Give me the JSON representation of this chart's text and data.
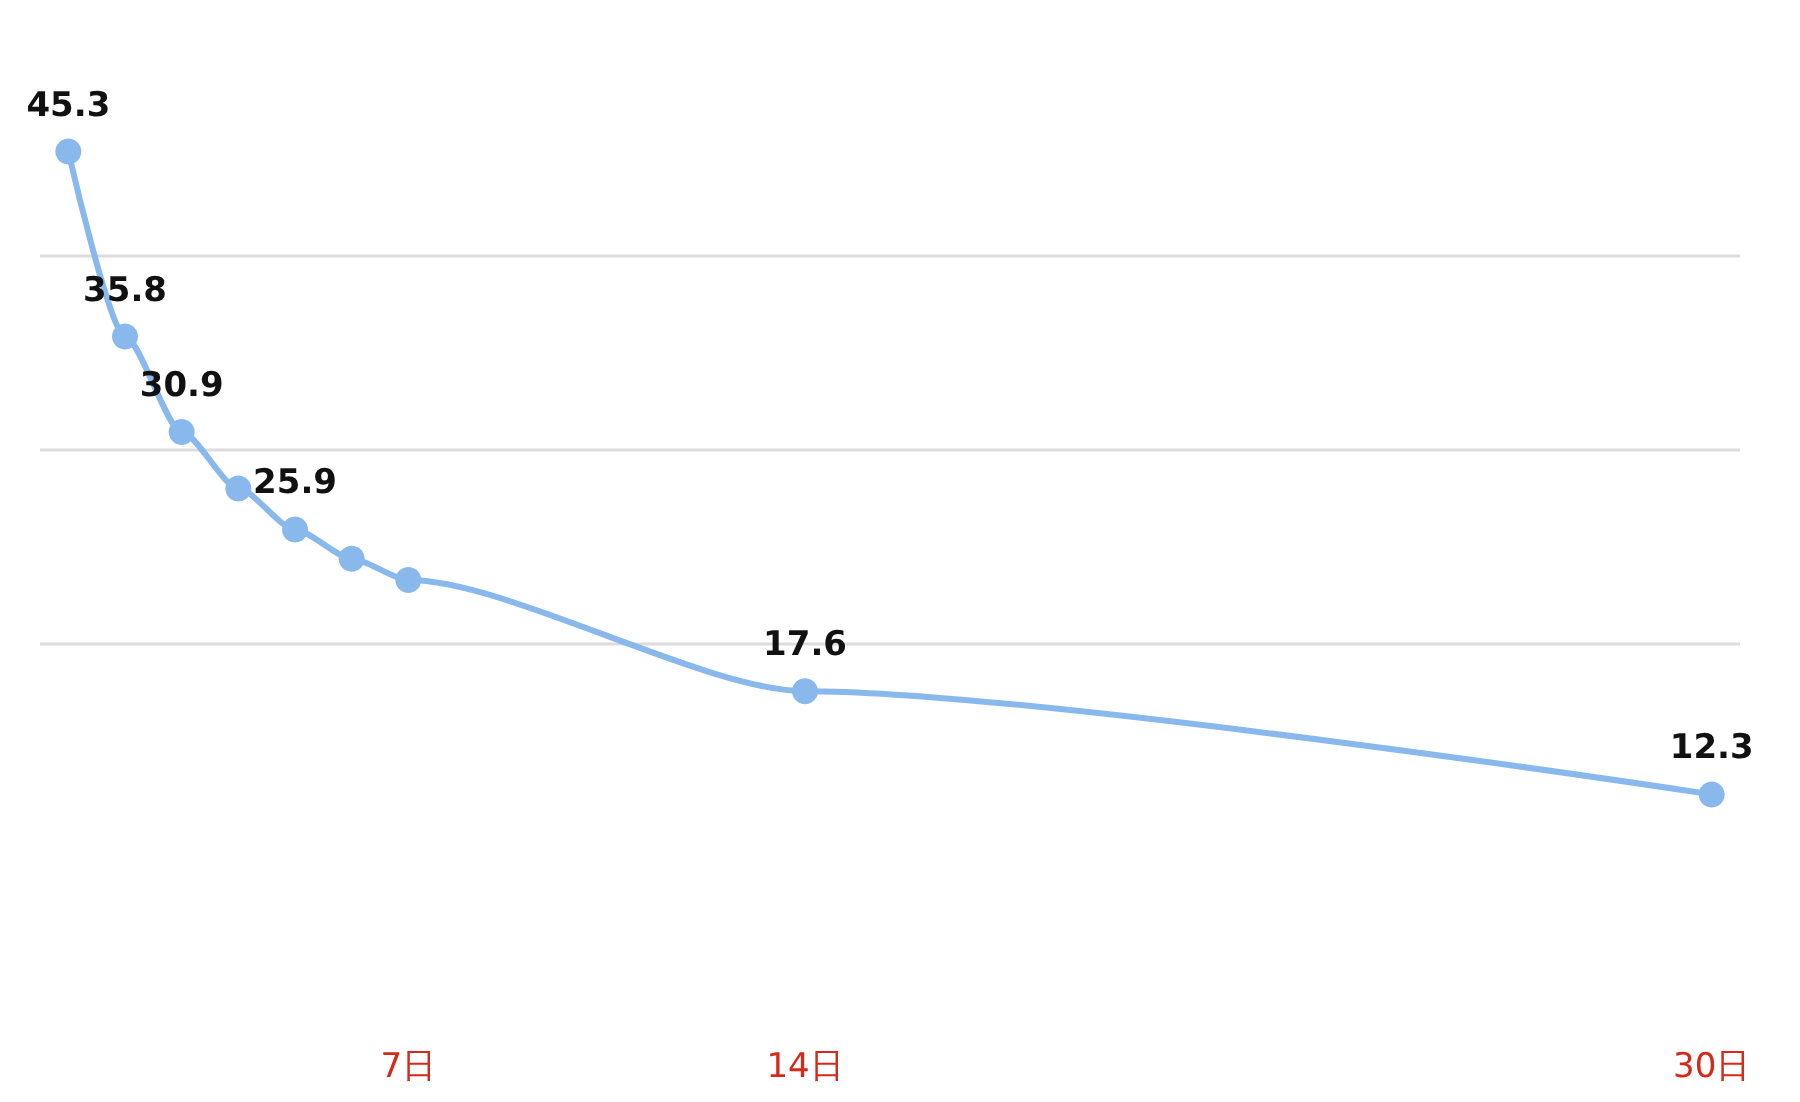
{
  "chart_data": {
    "type": "line",
    "x": [
      1,
      2,
      3,
      4,
      5,
      6,
      7,
      14,
      30
    ],
    "series": [
      {
        "color": "#88b8ec",
        "values": [
          45.3,
          35.8,
          30.9,
          28.0,
          25.9,
          24.4,
          23.3,
          17.6,
          12.3
        ],
        "value_labels": [
          "45.3",
          "35.8",
          "30.9",
          null,
          "25.9",
          null,
          null,
          "17.6",
          "12.3"
        ]
      }
    ],
    "xlim": [
      0.5,
      30.5
    ],
    "xticks": [
      {
        "value": 7,
        "label": "7日"
      },
      {
        "value": 14,
        "label": "14日"
      },
      {
        "value": 30,
        "label": "30日"
      }
    ],
    "yticks": [
      {
        "value": 20,
        "label": null
      },
      {
        "value": 30,
        "label": null
      },
      {
        "value": 40,
        "label": null
      }
    ],
    "tick_labels": "x",
    "grid": "y",
    "marker": "circle",
    "line_style": "solid"
  }
}
